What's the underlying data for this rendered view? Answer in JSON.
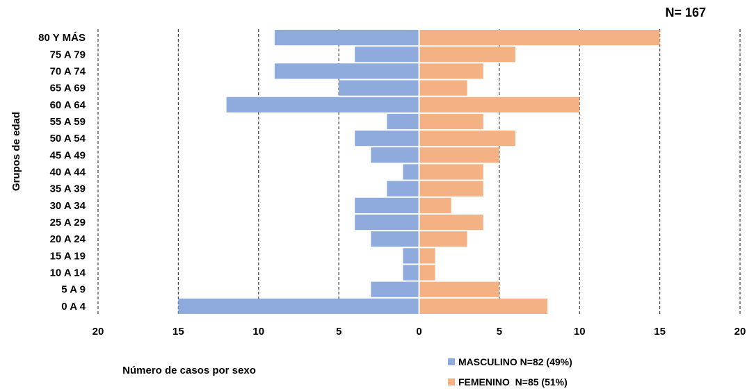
{
  "chart_data": {
    "type": "bar",
    "orientation": "horizontal",
    "layout": "population-pyramid",
    "total_label": "N= 167",
    "xlabel": "Número de casos por sexo",
    "ylabel": "Grupos de edad",
    "xlim": [
      -20,
      20
    ],
    "xticks": [
      -20,
      -15,
      -10,
      -5,
      0,
      5,
      10,
      15,
      20
    ],
    "xtick_labels": [
      "20",
      "15",
      "10",
      "5",
      "0",
      "5",
      "10",
      "15",
      "20"
    ],
    "grid": "vertical dashed",
    "legend_position": "bottom-right",
    "categories": [
      "80 Y MÁS",
      "75 A 79",
      "70 A 74",
      "65 A 69",
      "60 A 64",
      "55 A 59",
      "50 A 54",
      "45 A 49",
      "40 A 44",
      "35 A 39",
      "30 A 34",
      "25 A 29",
      "20 A 24",
      "15 A 19",
      "10 A 14",
      "5 A 9",
      "0 A 4"
    ],
    "series": [
      {
        "name": "MASCULINO N=82 (49%)",
        "color": "#8FAADC",
        "side": "left",
        "values": [
          9,
          4,
          9,
          5,
          12,
          2,
          4,
          3,
          1,
          2,
          4,
          4,
          3,
          1,
          1,
          3,
          15
        ]
      },
      {
        "name": "FEMENINO  N=85 (51%)",
        "color": "#F4B183",
        "side": "right",
        "values": [
          15,
          6,
          4,
          3,
          10,
          4,
          6,
          5,
          4,
          4,
          2,
          4,
          3,
          1,
          1,
          5,
          8
        ]
      }
    ]
  }
}
